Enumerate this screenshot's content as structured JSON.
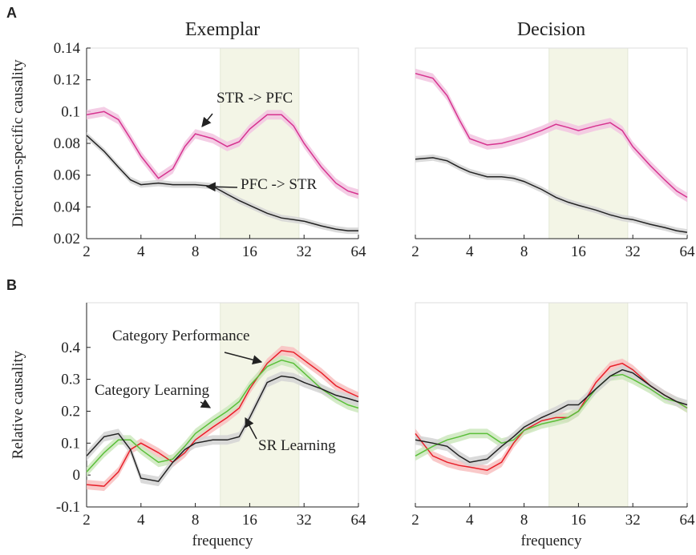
{
  "panel_labels": [
    "A",
    "B"
  ],
  "chart_data": [
    {
      "type": "line",
      "title": "Exemplar",
      "ylabel": "Direction-specific causality",
      "log_scale": true,
      "x": [
        2,
        2.5,
        3,
        3.5,
        4,
        5,
        6,
        7,
        8,
        10,
        12,
        14,
        16,
        20,
        24,
        28,
        32,
        40,
        48,
        56,
        64
      ],
      "xlim": [
        2,
        64
      ],
      "xticks": [
        2,
        4,
        8,
        16,
        32,
        64
      ],
      "ylim": [
        0.02,
        0.14
      ],
      "yticks": [
        0.02,
        0.04,
        0.06,
        0.08,
        0.1,
        0.12,
        0.14
      ],
      "show_yticks": true,
      "band": [
        11,
        30
      ],
      "band_color": "#f3f5e6",
      "series": [
        {
          "name": "STR -> PFC",
          "color": "#d6338f",
          "band_color": "#f2c4e1",
          "error": 0.003,
          "values": [
            0.098,
            0.1,
            0.095,
            0.083,
            0.072,
            0.058,
            0.064,
            0.078,
            0.086,
            0.083,
            0.078,
            0.081,
            0.089,
            0.098,
            0.098,
            0.091,
            0.08,
            0.065,
            0.055,
            0.05,
            0.048
          ]
        },
        {
          "name": "PFC -> STR",
          "color": "#222222",
          "band_color": "#d3d3d3",
          "error": 0.002,
          "values": [
            0.085,
            0.075,
            0.065,
            0.057,
            0.054,
            0.055,
            0.054,
            0.054,
            0.054,
            0.053,
            0.048,
            0.044,
            0.041,
            0.036,
            0.033,
            0.032,
            0.031,
            0.028,
            0.026,
            0.025,
            0.025
          ]
        }
      ]
    },
    {
      "type": "line",
      "title": "Decision",
      "log_scale": true,
      "x": [
        2,
        2.5,
        3,
        3.5,
        4,
        5,
        6,
        7,
        8,
        10,
        12,
        14,
        16,
        20,
        24,
        28,
        32,
        40,
        48,
        56,
        64
      ],
      "xlim": [
        2,
        64
      ],
      "xticks": [
        2,
        4,
        8,
        16,
        32,
        64
      ],
      "ylim": [
        0.02,
        0.14
      ],
      "yticks": [
        0.02,
        0.04,
        0.06,
        0.08,
        0.1,
        0.12,
        0.14
      ],
      "show_yticks": false,
      "band": [
        11,
        30
      ],
      "band_color": "#f3f5e6",
      "series": [
        {
          "color": "#d6338f",
          "band_color": "#f2c4e1",
          "error": 0.003,
          "values": [
            0.124,
            0.121,
            0.11,
            0.095,
            0.083,
            0.079,
            0.08,
            0.082,
            0.084,
            0.088,
            0.092,
            0.09,
            0.088,
            0.091,
            0.093,
            0.088,
            0.078,
            0.066,
            0.057,
            0.05,
            0.046
          ]
        },
        {
          "color": "#222222",
          "band_color": "#d3d3d3",
          "error": 0.002,
          "values": [
            0.07,
            0.071,
            0.069,
            0.065,
            0.062,
            0.059,
            0.059,
            0.058,
            0.056,
            0.051,
            0.046,
            0.043,
            0.041,
            0.038,
            0.035,
            0.033,
            0.032,
            0.029,
            0.027,
            0.025,
            0.024
          ]
        }
      ]
    },
    {
      "type": "line",
      "ylabel": "Relative causality",
      "xlabel": "frequency",
      "log_scale": true,
      "x": [
        2,
        2.5,
        3,
        3.5,
        4,
        5,
        6,
        7,
        8,
        10,
        12,
        14,
        16,
        20,
        24,
        28,
        32,
        40,
        48,
        56,
        64
      ],
      "xlim": [
        2,
        64
      ],
      "xticks": [
        2,
        4,
        8,
        16,
        32,
        64
      ],
      "ylim": [
        -0.1,
        0.54
      ],
      "yticks": [
        -0.1,
        0,
        0.1,
        0.2,
        0.3,
        0.4
      ],
      "show_yticks": true,
      "band": [
        11,
        30
      ],
      "band_color": "#f3f5e6",
      "series": [
        {
          "name": "Category Performance",
          "color": "#e8202a",
          "band_color": "#f8c0c0",
          "error": 0.015,
          "values": [
            -0.03,
            -0.035,
            0.01,
            0.08,
            0.1,
            0.07,
            0.04,
            0.07,
            0.11,
            0.15,
            0.18,
            0.21,
            0.27,
            0.35,
            0.39,
            0.385,
            0.36,
            0.32,
            0.28,
            0.26,
            0.245
          ]
        },
        {
          "name": "Category Learning",
          "color": "#5bbf3a",
          "band_color": "#cde8bd",
          "error": 0.015,
          "values": [
            0.01,
            0.07,
            0.11,
            0.11,
            0.08,
            0.04,
            0.05,
            0.09,
            0.13,
            0.17,
            0.2,
            0.23,
            0.28,
            0.34,
            0.36,
            0.35,
            0.32,
            0.27,
            0.24,
            0.22,
            0.21
          ]
        },
        {
          "name": "SR Learning",
          "color": "#222222",
          "band_color": "#d3d3d3",
          "error": 0.015,
          "values": [
            0.06,
            0.12,
            0.13,
            0.08,
            -0.01,
            -0.02,
            0.04,
            0.08,
            0.1,
            0.11,
            0.11,
            0.12,
            0.18,
            0.29,
            0.31,
            0.305,
            0.29,
            0.27,
            0.25,
            0.24,
            0.23
          ]
        }
      ]
    },
    {
      "type": "line",
      "xlabel": "frequency",
      "log_scale": true,
      "x": [
        2,
        2.5,
        3,
        3.5,
        4,
        5,
        6,
        7,
        8,
        10,
        12,
        14,
        16,
        20,
        24,
        28,
        32,
        40,
        48,
        56,
        64
      ],
      "xlim": [
        2,
        64
      ],
      "xticks": [
        2,
        4,
        8,
        16,
        32,
        64
      ],
      "ylim": [
        -0.1,
        0.54
      ],
      "yticks": [
        -0.1,
        0,
        0.1,
        0.2,
        0.3,
        0.4
      ],
      "show_yticks": false,
      "band": [
        11,
        30
      ],
      "band_color": "#f3f5e6",
      "series": [
        {
          "color": "#e8202a",
          "band_color": "#f8c0c0",
          "error": 0.015,
          "values": [
            0.13,
            0.06,
            0.04,
            0.03,
            0.025,
            0.015,
            0.04,
            0.1,
            0.14,
            0.17,
            0.18,
            0.18,
            0.2,
            0.29,
            0.34,
            0.35,
            0.33,
            0.28,
            0.25,
            0.23,
            0.21
          ]
        },
        {
          "color": "#5bbf3a",
          "band_color": "#cde8bd",
          "error": 0.015,
          "values": [
            0.06,
            0.09,
            0.11,
            0.12,
            0.13,
            0.13,
            0.1,
            0.11,
            0.14,
            0.16,
            0.17,
            0.18,
            0.2,
            0.27,
            0.31,
            0.315,
            0.3,
            0.27,
            0.24,
            0.23,
            0.21
          ]
        },
        {
          "color": "#222222",
          "band_color": "#d3d3d3",
          "error": 0.015,
          "values": [
            0.11,
            0.1,
            0.09,
            0.06,
            0.04,
            0.05,
            0.09,
            0.12,
            0.15,
            0.18,
            0.2,
            0.22,
            0.22,
            0.27,
            0.31,
            0.33,
            0.32,
            0.28,
            0.25,
            0.23,
            0.22
          ]
        }
      ]
    }
  ]
}
